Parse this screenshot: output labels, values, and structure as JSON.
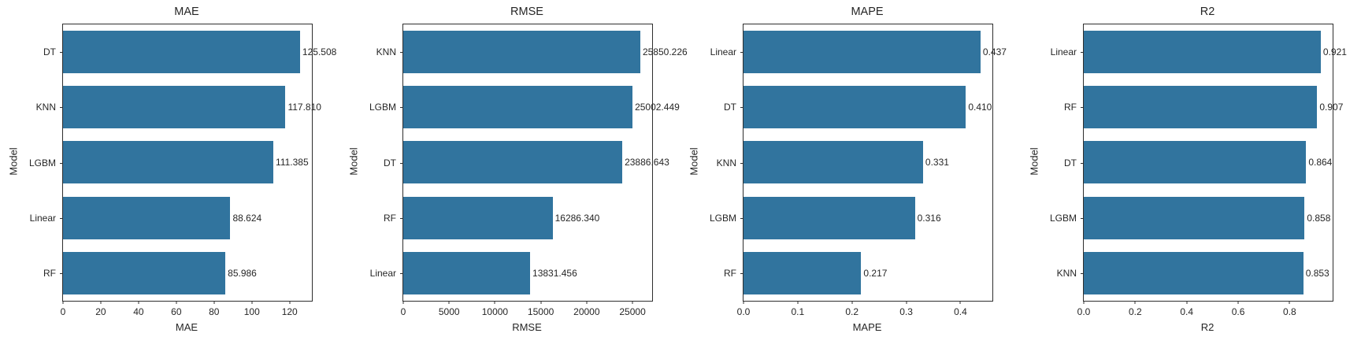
{
  "figure": {
    "bar_color": "#31749e",
    "spine_color": "#2e2e2e",
    "text_color": "#262626",
    "background": "#ffffff"
  },
  "chart_data": [
    {
      "type": "bar",
      "orientation": "horizontal",
      "title": "MAE",
      "xlabel": "MAE",
      "ylabel": "Model",
      "categories": [
        "DT",
        "KNN",
        "LGBM",
        "Linear",
        "RF"
      ],
      "values": [
        125.508,
        117.81,
        111.385,
        88.624,
        85.986
      ],
      "value_labels": [
        "125.508",
        "117.810",
        "111.385",
        "88.624",
        "85.986"
      ],
      "xticks": [
        0,
        20,
        40,
        60,
        80,
        100,
        120
      ],
      "xtick_labels": [
        "0",
        "20",
        "40",
        "60",
        "80",
        "100",
        "120"
      ],
      "xlim": [
        0,
        131.8
      ],
      "grid": false,
      "legend": "none"
    },
    {
      "type": "bar",
      "orientation": "horizontal",
      "title": "RMSE",
      "xlabel": "RMSE",
      "ylabel": "Model",
      "categories": [
        "KNN",
        "LGBM",
        "DT",
        "RF",
        "Linear"
      ],
      "values": [
        25850.226,
        25002.449,
        23886.643,
        16286.34,
        13831.456
      ],
      "value_labels": [
        "25850.226",
        "25002.449",
        "23886.643",
        "16286.340",
        "13831.456"
      ],
      "xticks": [
        0,
        5000,
        10000,
        15000,
        20000,
        25000
      ],
      "xtick_labels": [
        "0",
        "5000",
        "10000",
        "15000",
        "20000",
        "25000"
      ],
      "xlim": [
        0,
        27142.7
      ],
      "grid": false,
      "legend": "none"
    },
    {
      "type": "bar",
      "orientation": "horizontal",
      "title": "MAPE",
      "xlabel": "MAPE",
      "ylabel": "Model",
      "categories": [
        "Linear",
        "DT",
        "KNN",
        "LGBM",
        "RF"
      ],
      "values": [
        0.437,
        0.41,
        0.331,
        0.316,
        0.217
      ],
      "value_labels": [
        "0.437",
        "0.410",
        "0.331",
        "0.316",
        "0.217"
      ],
      "xticks": [
        0.0,
        0.1,
        0.2,
        0.3,
        0.4
      ],
      "xtick_labels": [
        "0.0",
        "0.1",
        "0.2",
        "0.3",
        "0.4"
      ],
      "xlim": [
        0,
        0.4589
      ],
      "grid": false,
      "legend": "none"
    },
    {
      "type": "bar",
      "orientation": "horizontal",
      "title": "R2",
      "xlabel": "R2",
      "ylabel": "Model",
      "categories": [
        "Linear",
        "RF",
        "DT",
        "LGBM",
        "KNN"
      ],
      "values": [
        0.921,
        0.907,
        0.864,
        0.858,
        0.853
      ],
      "value_labels": [
        "0.921",
        "0.907",
        "0.864",
        "0.858",
        "0.853"
      ],
      "xticks": [
        0.0,
        0.2,
        0.4,
        0.6,
        0.8
      ],
      "xtick_labels": [
        "0.0",
        "0.2",
        "0.4",
        "0.6",
        "0.8"
      ],
      "xlim": [
        0,
        0.9671
      ],
      "grid": false,
      "legend": "none"
    }
  ]
}
